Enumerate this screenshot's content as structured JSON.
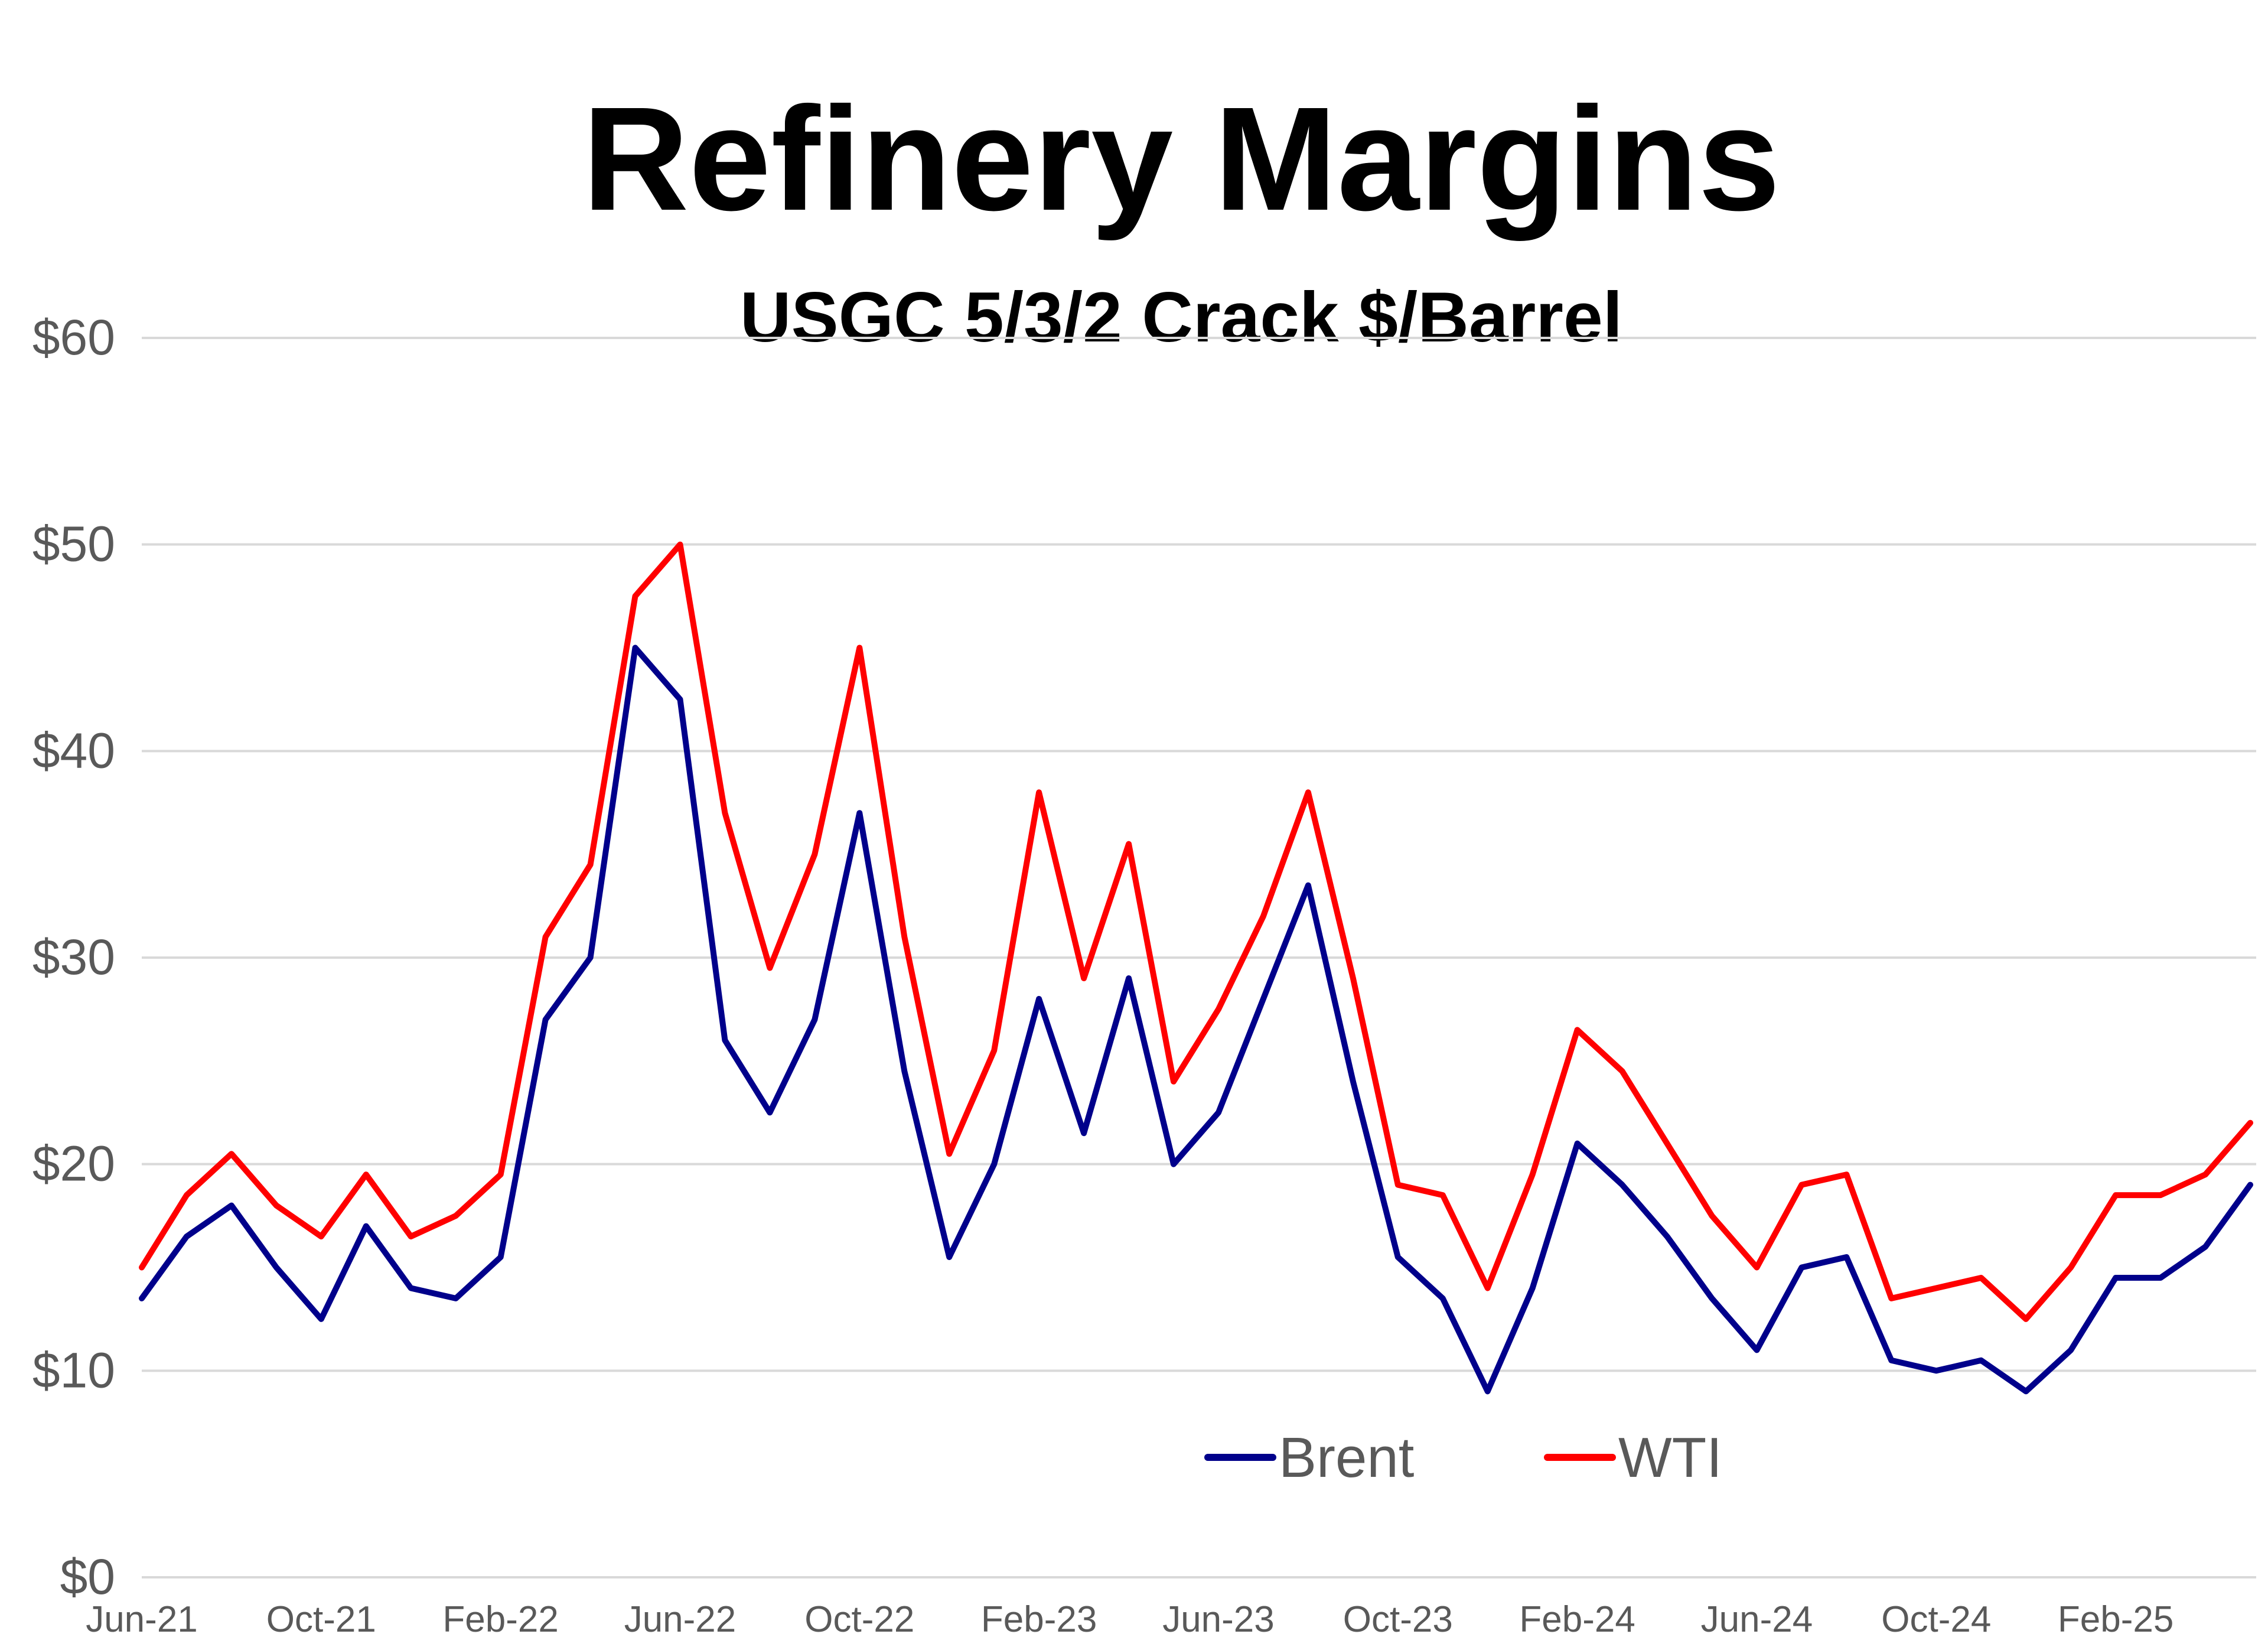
{
  "chart_data": {
    "type": "line",
    "title": "Refinery Margins",
    "subtitle": "USGC 5/3/2 Crack $/Barrel",
    "xlabel": "",
    "ylabel": "",
    "ylim": [
      0,
      60
    ],
    "yticks": [
      0,
      10,
      20,
      30,
      40,
      50,
      60
    ],
    "ytick_labels": [
      "$0",
      "$10",
      "$20",
      "$30",
      "$40",
      "$50",
      "$60"
    ],
    "xlim": [
      "Jun-21",
      "May-25"
    ],
    "xtick_labels": [
      "Jun-21",
      "Oct-21",
      "Feb-22",
      "Jun-22",
      "Oct-22",
      "Feb-23",
      "Jun-23",
      "Oct-23",
      "Feb-24",
      "Jun-24",
      "Oct-24",
      "Feb-25"
    ],
    "grid": true,
    "legend_position": "bottom-center",
    "x": [
      "Jun-21",
      "Jul-21",
      "Aug-21",
      "Sep-21",
      "Oct-21",
      "Nov-21",
      "Dec-21",
      "Jan-22",
      "Feb-22",
      "Mar-22",
      "Apr-22",
      "May-22",
      "Jun-22",
      "Jul-22",
      "Aug-22",
      "Sep-22",
      "Oct-22",
      "Nov-22",
      "Dec-22",
      "Jan-23",
      "Feb-23",
      "Mar-23",
      "Apr-23",
      "May-23",
      "Jun-23",
      "Jul-23",
      "Aug-23",
      "Sep-23",
      "Oct-23",
      "Nov-23",
      "Dec-23",
      "Jan-24",
      "Feb-24",
      "Mar-24",
      "Apr-24",
      "May-24",
      "Jun-24",
      "Jul-24",
      "Aug-24",
      "Sep-24",
      "Oct-24",
      "Nov-24",
      "Dec-24",
      "Jan-25",
      "Feb-25",
      "Mar-25",
      "Apr-25",
      "May-25"
    ],
    "series": [
      {
        "name": "Brent",
        "color": "#00008b",
        "values": [
          13.5,
          16.5,
          18.0,
          15.0,
          12.5,
          17.0,
          14.0,
          13.5,
          15.5,
          27.0,
          30.0,
          45.0,
          42.5,
          26.0,
          22.5,
          27.0,
          37.0,
          24.5,
          15.5,
          20.0,
          28.0,
          21.5,
          29.0,
          20.0,
          22.5,
          28.0,
          33.5,
          24.0,
          15.5,
          13.5,
          9.0,
          14.0,
          21.0,
          19.0,
          16.5,
          13.5,
          11.0,
          15.0,
          15.5,
          10.5,
          10.0,
          10.5,
          9.0,
          11.0,
          14.5,
          14.5,
          16.0,
          19.0
        ]
      },
      {
        "name": "WTI",
        "color": "#ff0000",
        "values": [
          15.0,
          18.5,
          20.5,
          18.0,
          16.5,
          19.5,
          16.5,
          17.5,
          19.5,
          31.0,
          34.5,
          47.5,
          50.0,
          37.0,
          29.5,
          35.0,
          45.0,
          31.0,
          20.5,
          25.5,
          38.0,
          29.0,
          35.5,
          24.0,
          27.5,
          32.0,
          38.0,
          29.0,
          19.0,
          18.5,
          14.0,
          19.5,
          26.5,
          24.5,
          21.0,
          17.5,
          15.0,
          19.0,
          19.5,
          13.5,
          14.0,
          14.5,
          12.5,
          15.0,
          18.5,
          18.5,
          19.5,
          22.0
        ]
      }
    ],
    "legend": [
      {
        "name": "Brent",
        "color": "#00008b"
      },
      {
        "name": "WTI",
        "color": "#ff0000"
      }
    ]
  }
}
